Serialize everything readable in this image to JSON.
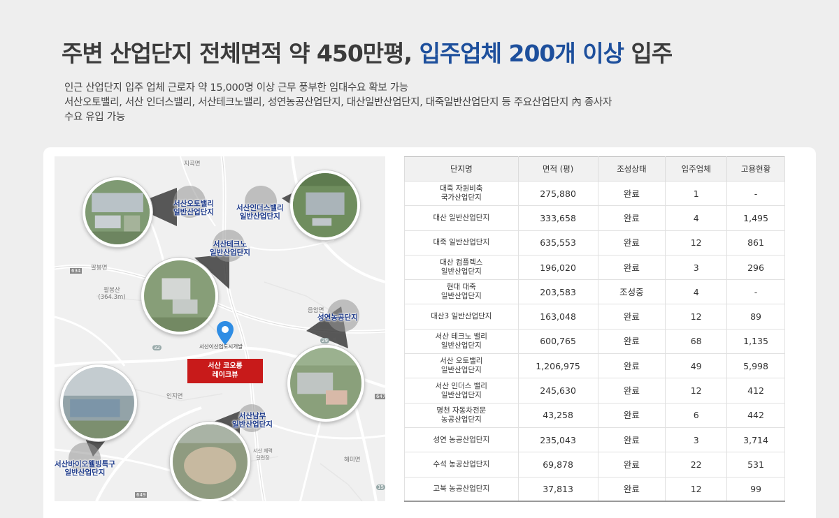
{
  "headline": {
    "part1": "주변 산업단지 전체면적 약 450만평,",
    "part2": "입주업체 200개 이상",
    "part3": "입주"
  },
  "description": [
    "인근 산업단지 입주 업체 근로자 약 15,000명 이상 근무 풍부한 임대수요 확보 가능",
    "서산오토밸리, 서산 인더스밸리, 서산테크노밸리, 성연농공산업단지, 대산일반산업단지, 대죽일반산업단지 등 주요산업단지 內 종사자",
    "수요 유입 가능"
  ],
  "map": {
    "places": [
      "지곡면",
      "팔봉면",
      "팔봉산 (364.3m)",
      "음암면",
      "인지면",
      "해미면",
      "서산 체력단련장",
      "634",
      "647",
      "649",
      "29",
      "32",
      "15"
    ],
    "complex_labels": {
      "auto": "서산오토밸리\n일반산업단지",
      "indus": "서산인더스밸리\n일반산업단지",
      "techno": "서산테크노\n일반산업단지",
      "seongyeon": "성연농공단지",
      "nambu": "서산남부\n일반산업단지",
      "bio": "서산바이오웰빙특구\n일반산업단지"
    },
    "site_pin_label": "서산이산업도시개발",
    "site_box": "서산 코오롱\n레이크뷰"
  },
  "table": {
    "headers": [
      "단지명",
      "면적 (평)",
      "조성상태",
      "입주업체",
      "고용현황"
    ],
    "rows": [
      [
        "대죽 자원비축\n국가산업단지",
        "275,880",
        "완료",
        "1",
        "-"
      ],
      [
        "대산 일반산업단지",
        "333,658",
        "완료",
        "4",
        "1,495"
      ],
      [
        "대죽 일반산업단지",
        "635,553",
        "완료",
        "12",
        "861"
      ],
      [
        "대산 컴플렉스\n일반산업단지",
        "196,020",
        "완료",
        "3",
        "296"
      ],
      [
        "현대 대죽\n일반산업단지",
        "203,583",
        "조성중",
        "4",
        "-"
      ],
      [
        "대산3 일반산업단지",
        "163,048",
        "완료",
        "12",
        "89"
      ],
      [
        "서산 테크노 밸리\n일반산업단지",
        "600,765",
        "완료",
        "68",
        "1,135"
      ],
      [
        "서산 오토밸리\n일반산업단지",
        "1,206,975",
        "완료",
        "49",
        "5,998"
      ],
      [
        "서산 인더스 밸리\n일반산업단지",
        "245,630",
        "완료",
        "12",
        "412"
      ],
      [
        "명천 자동차전문\n농공산업단지",
        "43,258",
        "완료",
        "6",
        "442"
      ],
      [
        "성연 농공산업단지",
        "235,043",
        "완료",
        "3",
        "3,714"
      ],
      [
        "수석 농공산업단지",
        "69,878",
        "완료",
        "22",
        "531"
      ],
      [
        "고북 농공산업단지",
        "37,813",
        "완료",
        "12",
        "99"
      ]
    ]
  },
  "colors": {
    "accent": "#1d4f9c",
    "site_box": "#c81a1a",
    "pin": "#2f8de4"
  }
}
